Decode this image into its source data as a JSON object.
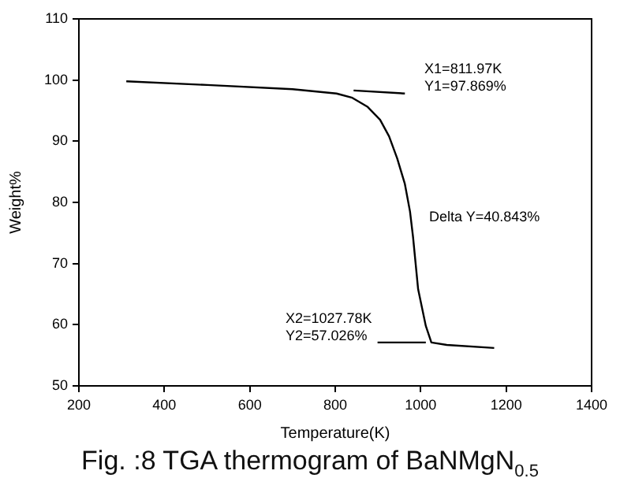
{
  "chart_data": {
    "type": "line",
    "title": "Fig. :8 TGA thermogram of BaNMgN$_{0.5}$",
    "xlabel": "Temperature(K)",
    "ylabel": "Weight%",
    "xlim": [
      200,
      1400
    ],
    "xticks": [
      200,
      400,
      600,
      800,
      1000,
      1200,
      1400
    ],
    "ylim": [
      50,
      110
    ],
    "yticks": [
      50,
      60,
      70,
      80,
      90,
      100,
      110
    ],
    "grid": false,
    "legend": false,
    "marker": "none",
    "line_style": "solid",
    "series": [
      {
        "color": "#000000",
        "x": [
          311,
          500,
          700,
          803,
          840,
          876,
          905,
          926,
          945,
          963,
          975,
          982,
          994,
          1012,
          1025,
          1061,
          1172
        ],
        "values": [
          99.8,
          99.2,
          98.5,
          97.8,
          97.1,
          95.6,
          93.5,
          90.8,
          87.2,
          83.0,
          78.5,
          74.4,
          65.8,
          59.8,
          57.1,
          56.7,
          56.2
        ]
      },
      {
        "color": "#000000",
        "x": [
          843,
          963
        ],
        "values": [
          98.3,
          97.8
        ]
      },
      {
        "color": "#000000",
        "x": [
          899,
          1012
        ],
        "values": [
          57.1,
          57.1
        ]
      }
    ],
    "annotations": [
      "X1=811.97K\nY1=97.869%",
      "Delta Y=40.843%",
      "X2=1027.78K\nY2=57.026%"
    ]
  }
}
